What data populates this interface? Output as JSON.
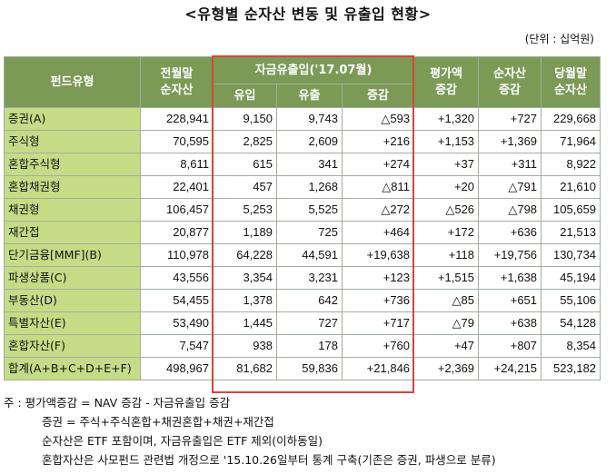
{
  "title": "<유형별 순자산 변동 및 유출입 현황>",
  "unit": "(단위 : 십억원)",
  "headers": {
    "fund_type": "펀드유형",
    "prev_month": "전월말\n순자산",
    "flow_group": "자금유출입('17.07월)",
    "inflow": "유입",
    "outflow": "유출",
    "net": "증감",
    "valuation": "평가액\n증감",
    "nav_change": "순자산\n증감",
    "this_month": "당월말\n순자산"
  },
  "rows": [
    {
      "type": "증권(A)",
      "prev": "228,941",
      "in": "9,150",
      "out": "9,743",
      "net": "△593",
      "val": "+1,320",
      "nav": "+727",
      "cur": "229,668"
    },
    {
      "type": "주식형",
      "prev": "70,595",
      "in": "2,825",
      "out": "2,609",
      "net": "+216",
      "val": "+1,153",
      "nav": "+1,369",
      "cur": "71,964"
    },
    {
      "type": "혼합주식형",
      "prev": "8,611",
      "in": "615",
      "out": "341",
      "net": "+274",
      "val": "+37",
      "nav": "+311",
      "cur": "8,922"
    },
    {
      "type": "혼합채권형",
      "prev": "22,401",
      "in": "457",
      "out": "1,268",
      "net": "△811",
      "val": "+20",
      "nav": "△791",
      "cur": "21,610"
    },
    {
      "type": "채권형",
      "prev": "106,457",
      "in": "5,253",
      "out": "5,525",
      "net": "△272",
      "val": "△526",
      "nav": "△798",
      "cur": "105,659"
    },
    {
      "type": "재간접",
      "prev": "20,877",
      "in": "1,189",
      "out": "725",
      "net": "+464",
      "val": "+172",
      "nav": "+636",
      "cur": "21,513"
    },
    {
      "type": "단기금융[MMF](B)",
      "prev": "110,978",
      "in": "64,228",
      "out": "44,591",
      "net": "+19,638",
      "val": "+118",
      "nav": "+19,756",
      "cur": "130,734"
    },
    {
      "type": "파생상품(C)",
      "prev": "43,556",
      "in": "3,354",
      "out": "3,231",
      "net": "+123",
      "val": "+1,515",
      "nav": "+1,638",
      "cur": "45,194"
    },
    {
      "type": "부동산(D)",
      "prev": "54,455",
      "in": "1,378",
      "out": "642",
      "net": "+736",
      "val": "△85",
      "nav": "+651",
      "cur": "55,106"
    },
    {
      "type": "특별자산(E)",
      "prev": "53,490",
      "in": "1,445",
      "out": "727",
      "net": "+717",
      "val": "△79",
      "nav": "+638",
      "cur": "54,128"
    },
    {
      "type": "혼합자산(F)",
      "prev": "7,547",
      "in": "938",
      "out": "178",
      "net": "+760",
      "val": "+47",
      "nav": "+807",
      "cur": "8,354"
    },
    {
      "type": "합계(A+B+C+D+E+F)",
      "prev": "498,967",
      "in": "81,682",
      "out": "59,836",
      "net": "+21,846",
      "val": "+2,369",
      "nav": "+24,215",
      "cur": "523,182"
    }
  ],
  "notes": {
    "line1": "주 : 평가액증감 = NAV 증감 - 자금유출입 증감",
    "line2": "증권 = 주식+주식혼합+채권혼합+채권+재간접",
    "line3": "순자산은 ETF 포함이며, 자금유출입은 ETF 제외(이하동일)",
    "line4": "혼합자산은 사모펀드 관련법 개정으로 '15.10.26일부터 통계 구축(기존은 증권, 파생으로 분류)"
  },
  "colors": {
    "header_bg": "#7a9a56",
    "category_bg": "#c4dc86",
    "highlight_border": "#d9453a"
  }
}
